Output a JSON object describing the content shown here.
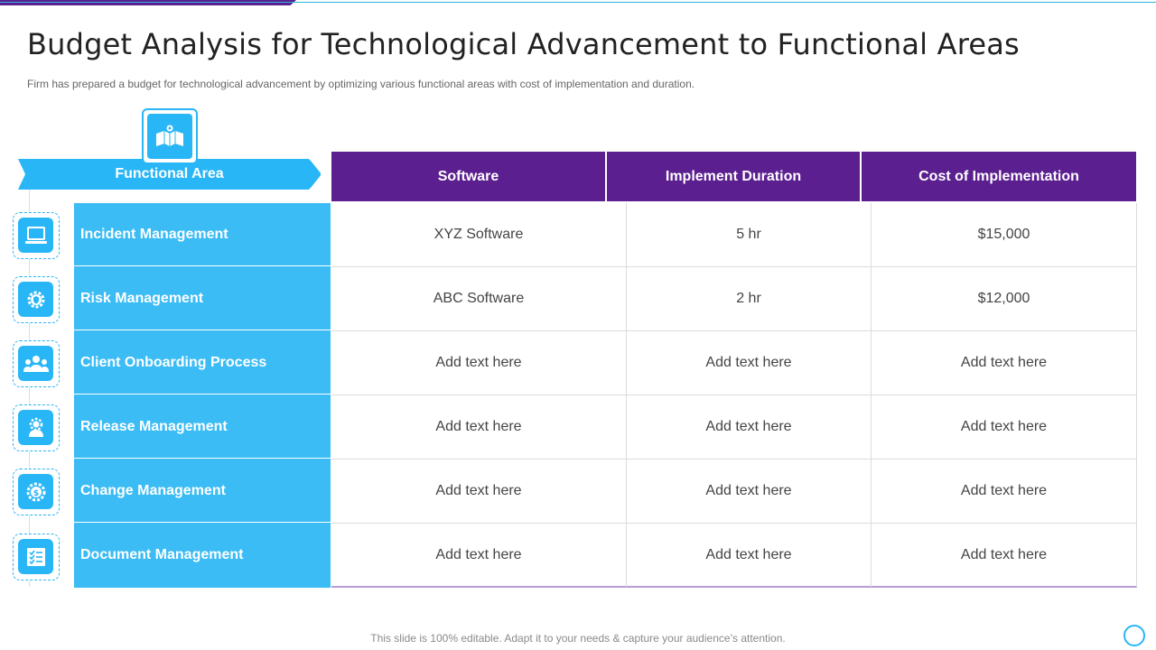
{
  "title": "Budget Analysis for Technological Advancement to Functional Areas",
  "subtitle": "Firm has prepared a budget for technological advancement by optimizing various functional areas with cost of implementation and duration.",
  "functional_area_header": "Functional Area",
  "columns": [
    "Software",
    "Implement Duration",
    "Cost of Implementation"
  ],
  "rows": [
    {
      "area": "Incident Management",
      "icon": "laptop-icon",
      "software": "XYZ  Software",
      "duration": "5 hr",
      "cost": "$15,000"
    },
    {
      "area": "Risk Management",
      "icon": "gear-shield-icon",
      "software": "ABC Software",
      "duration": "2 hr",
      "cost": "$12,000"
    },
    {
      "area": "Client Onboarding Process",
      "icon": "team-icon",
      "software": "Add text here",
      "duration": "Add text here",
      "cost": "Add text here"
    },
    {
      "area": "Release Management",
      "icon": "user-gear-icon",
      "software": "Add text here",
      "duration": "Add text here",
      "cost": "Add text here"
    },
    {
      "area": "Change Management",
      "icon": "gear-dollar-icon",
      "software": "Add text here",
      "duration": "Add text here",
      "cost": "Add text here"
    },
    {
      "area": "Document Management",
      "icon": "checklist-icon",
      "software": "Add text here",
      "duration": "Add text here",
      "cost": "Add text here"
    }
  ],
  "footer": "This slide is 100% editable. Adapt it to your needs & capture your audience’s attention.",
  "colors": {
    "purple": "#5b1f8f",
    "blue": "#29b6f6",
    "cell_blue": "#3bbcf5"
  }
}
